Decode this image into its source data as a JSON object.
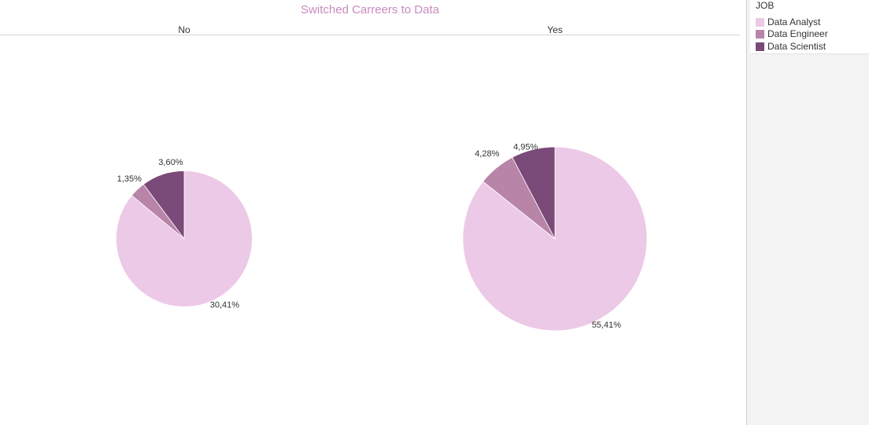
{
  "chart_data": {
    "type": "pie",
    "title": "Switched Carreers to Data",
    "facet_field": "",
    "facets": [
      {
        "name": "No",
        "slices": [
          {
            "category": "Data Analyst",
            "label": "30,41%",
            "value": 30.41
          },
          {
            "category": "Data Engineer",
            "label": "1,35%",
            "value": 1.35
          },
          {
            "category": "Data Scientist",
            "label": "3,60%",
            "value": 3.6
          }
        ]
      },
      {
        "name": "Yes",
        "slices": [
          {
            "category": "Data Analyst",
            "label": "55,41%",
            "value": 55.41
          },
          {
            "category": "Data Engineer",
            "label": "4,28%",
            "value": 4.28
          },
          {
            "category": "Data Scientist",
            "label": "4,95%",
            "value": 4.95
          }
        ]
      }
    ],
    "colors": {
      "Data Analyst": "#ecc9e6",
      "Data Engineer": "#b884a8",
      "Data Scientist": "#7a4a78"
    },
    "legend": {
      "title": "JOB",
      "placement": "right",
      "items": [
        "Data Analyst",
        "Data Engineer",
        "Data Scientist"
      ]
    },
    "sizing": "pie area proportional to facet total"
  }
}
